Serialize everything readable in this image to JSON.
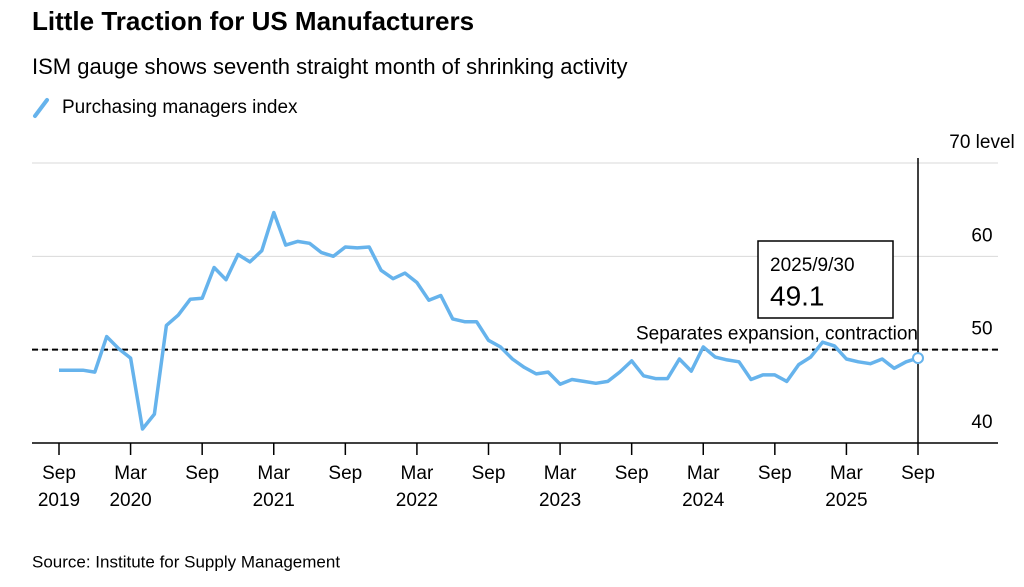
{
  "chart_data": {
    "type": "line",
    "title": "Little Traction for US Manufacturers",
    "subtitle": "ISM gauge shows seventh straight month of shrinking activity",
    "source": "Source: Institute for Supply Management",
    "x": [
      "2019-09",
      "2019-10",
      "2019-11",
      "2019-12",
      "2020-01",
      "2020-02",
      "2020-03",
      "2020-04",
      "2020-05",
      "2020-06",
      "2020-07",
      "2020-08",
      "2020-09",
      "2020-10",
      "2020-11",
      "2020-12",
      "2021-01",
      "2021-02",
      "2021-03",
      "2021-04",
      "2021-05",
      "2021-06",
      "2021-07",
      "2021-08",
      "2021-09",
      "2021-10",
      "2021-11",
      "2021-12",
      "2022-01",
      "2022-02",
      "2022-03",
      "2022-04",
      "2022-05",
      "2022-06",
      "2022-07",
      "2022-08",
      "2022-09",
      "2022-10",
      "2022-11",
      "2022-12",
      "2023-01",
      "2023-02",
      "2023-03",
      "2023-04",
      "2023-05",
      "2023-06",
      "2023-07",
      "2023-08",
      "2023-09",
      "2023-10",
      "2023-11",
      "2023-12",
      "2024-01",
      "2024-02",
      "2024-03",
      "2024-04",
      "2024-05",
      "2024-06",
      "2024-07",
      "2024-08",
      "2024-09",
      "2024-10",
      "2024-11",
      "2024-12",
      "2025-01",
      "2025-02",
      "2025-03",
      "2025-04",
      "2025-05",
      "2025-06",
      "2025-07",
      "2025-08",
      "2025-09"
    ],
    "series": [
      {
        "name": "Purchasing managers index",
        "color": "#66b3ec",
        "values": [
          47.8,
          47.8,
          47.8,
          47.6,
          51.4,
          50.1,
          49.1,
          41.5,
          43.1,
          52.6,
          53.7,
          55.4,
          55.5,
          58.8,
          57.5,
          60.2,
          59.4,
          60.6,
          64.7,
          61.2,
          61.6,
          61.4,
          60.4,
          60.0,
          61.0,
          60.9,
          61.0,
          58.5,
          57.6,
          58.2,
          57.2,
          55.3,
          55.8,
          53.3,
          53.0,
          53.0,
          51.0,
          50.3,
          49.0,
          48.1,
          47.4,
          47.6,
          46.3,
          46.8,
          46.6,
          46.4,
          46.6,
          47.6,
          48.8,
          47.2,
          46.9,
          46.9,
          49.0,
          47.7,
          50.3,
          49.2,
          48.9,
          48.7,
          46.8,
          47.3,
          47.3,
          46.6,
          48.4,
          49.2,
          50.8,
          50.4,
          49.0,
          48.7,
          48.5,
          49.0,
          48.0,
          48.7,
          49.1
        ]
      }
    ],
    "ylim": [
      40,
      70
    ],
    "yticks": [
      40,
      50,
      60,
      {
        "value": 70,
        "label": "70 level"
      }
    ],
    "xticks": [
      {
        "value": "2019-09",
        "label": [
          "Sep",
          "2019"
        ]
      },
      {
        "value": "2020-03",
        "label": [
          "Mar",
          "2020"
        ]
      },
      {
        "value": "2020-09",
        "label": [
          "Sep"
        ]
      },
      {
        "value": "2021-03",
        "label": [
          "Mar",
          "2021"
        ]
      },
      {
        "value": "2021-09",
        "label": [
          "Sep"
        ]
      },
      {
        "value": "2022-03",
        "label": [
          "Mar",
          "2022"
        ]
      },
      {
        "value": "2022-09",
        "label": [
          "Sep"
        ]
      },
      {
        "value": "2023-03",
        "label": [
          "Mar",
          "2023"
        ]
      },
      {
        "value": "2023-09",
        "label": [
          "Sep"
        ]
      },
      {
        "value": "2024-03",
        "label": [
          "Mar",
          "2024"
        ]
      },
      {
        "value": "2024-09",
        "label": [
          "Sep"
        ]
      },
      {
        "value": "2025-03",
        "label": [
          "Mar",
          "2025"
        ]
      },
      {
        "value": "2025-09",
        "label": [
          "Sep"
        ]
      }
    ],
    "grid": true,
    "reference_line": {
      "value": 50,
      "label": "Separates expansion, contraction"
    },
    "callout_date": "2025/9/30"
  }
}
